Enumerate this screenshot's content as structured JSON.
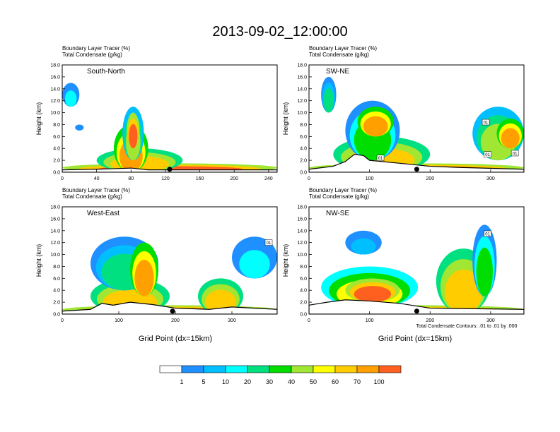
{
  "title": "2013-09-02_12:00:00",
  "panel_line1": "Boundary Layer Tracer   (%)",
  "panel_line2": "Total Condensate   (g/kg)",
  "ylabel": "Height (km)",
  "xlabel": "Grid Point (dx=15km)",
  "contour_note": "Total Condensate Contours: .01 to .01 by .000",
  "colors": {
    "levels": [
      "#ffffff",
      "#1e90ff",
      "#00bfff",
      "#00ffff",
      "#00e080",
      "#00dd00",
      "#a0e632",
      "#ffff00",
      "#ffcc00",
      "#ffa000",
      "#ff6020",
      "#ff2020"
    ],
    "contour": "#000000",
    "terrain": "#000000"
  },
  "colorbar": {
    "labels": [
      "1",
      "5",
      "10",
      "20",
      "30",
      "40",
      "50",
      "60",
      "70",
      "100"
    ]
  },
  "chart_data": [
    {
      "type": "heatmap",
      "name": "South-North",
      "label": "South-North",
      "ylim": [
        0,
        18
      ],
      "yticks": [
        "0.0",
        "2.0",
        "4.0",
        "6.0",
        "8.0",
        "10.0",
        "12.0",
        "14.0",
        "16.0",
        "18.0"
      ],
      "yvalues": [
        0,
        2,
        4,
        6,
        8,
        10,
        12,
        14,
        16,
        18
      ],
      "xlim": [
        0,
        250
      ],
      "xticks": [
        0,
        40,
        80,
        120,
        160,
        200,
        240
      ],
      "point_x": 125,
      "contour_labels": [],
      "terrain": [
        [
          0,
          0.4
        ],
        [
          40,
          0.5
        ],
        [
          60,
          0.6
        ],
        [
          80,
          0.7
        ],
        [
          100,
          0.4
        ],
        [
          250,
          0.4
        ]
      ],
      "blobs": [
        {
          "x": [
            0,
            250
          ],
          "y": [
            0,
            1.5
          ],
          "lv": 10
        },
        {
          "x": [
            40,
            140
          ],
          "y": [
            0,
            4
          ],
          "lv": 8
        },
        {
          "x": [
            60,
            100
          ],
          "y": [
            0,
            8
          ],
          "lv": 9
        },
        {
          "x": [
            70,
            95
          ],
          "y": [
            2,
            11
          ],
          "lv": 6
        },
        {
          "x": [
            75,
            90
          ],
          "y": [
            4,
            10
          ],
          "lv": 10
        },
        {
          "x": [
            0,
            20
          ],
          "y": [
            11,
            15
          ],
          "lv": 3
        },
        {
          "x": [
            15,
            25
          ],
          "y": [
            7,
            8
          ],
          "lv": 1
        }
      ]
    },
    {
      "type": "heatmap",
      "name": "SW-NE",
      "label": "SW-NE",
      "ylim": [
        0,
        18
      ],
      "yticks": [
        "0.0",
        "2.0",
        "4.0",
        "6.0",
        "8.0",
        "10.0",
        "12.0",
        "14.0",
        "16.0",
        "18.0"
      ],
      "yvalues": [
        0,
        2,
        4,
        6,
        8,
        10,
        12,
        14,
        16,
        18
      ],
      "xlim": [
        0,
        355
      ],
      "xticks": [
        0,
        100,
        200,
        300
      ],
      "point_x": 178,
      "contour_labels": [
        {
          "x": 118,
          "y": 2.4,
          "text": "01"
        },
        {
          "x": 292,
          "y": 8.4,
          "text": "01"
        },
        {
          "x": 295,
          "y": 3.0,
          "text": "01"
        },
        {
          "x": 340,
          "y": 3.2,
          "text": "01"
        }
      ],
      "terrain": [
        [
          0,
          0.5
        ],
        [
          40,
          1.0
        ],
        [
          60,
          1.8
        ],
        [
          75,
          3.0
        ],
        [
          90,
          2.8
        ],
        [
          100,
          2.0
        ],
        [
          150,
          1.5
        ],
        [
          200,
          1.0
        ],
        [
          250,
          0.8
        ],
        [
          355,
          0.5
        ]
      ],
      "blobs": [
        {
          "x": [
            0,
            355
          ],
          "y": [
            0,
            1.5
          ],
          "lv": 10
        },
        {
          "x": [
            40,
            200
          ],
          "y": [
            0,
            6
          ],
          "lv": 8
        },
        {
          "x": [
            60,
            150
          ],
          "y": [
            2,
            12
          ],
          "lv": 5
        },
        {
          "x": [
            80,
            140
          ],
          "y": [
            6,
            11
          ],
          "lv": 9
        },
        {
          "x": [
            20,
            45
          ],
          "y": [
            10,
            16
          ],
          "lv": 4
        },
        {
          "x": [
            270,
            355
          ],
          "y": [
            2,
            11
          ],
          "lv": 6
        },
        {
          "x": [
            310,
            355
          ],
          "y": [
            4,
            9
          ],
          "lv": 9
        }
      ]
    },
    {
      "type": "heatmap",
      "name": "West-East",
      "label": "West-East",
      "ylim": [
        0,
        18
      ],
      "yticks": [
        "0.0",
        "2.0",
        "4.0",
        "6.0",
        "8.0",
        "10.0",
        "12.0",
        "14.0",
        "16.0",
        "18.0"
      ],
      "yvalues": [
        0,
        2,
        4,
        6,
        8,
        10,
        12,
        14,
        16,
        18
      ],
      "xlim": [
        0,
        380
      ],
      "xticks": [
        0,
        100,
        200,
        300
      ],
      "point_x": 195,
      "contour_labels": [
        {
          "x": 365,
          "y": 12.0,
          "text": "01"
        }
      ],
      "terrain": [
        [
          0,
          0.5
        ],
        [
          50,
          0.8
        ],
        [
          70,
          1.8
        ],
        [
          90,
          1.5
        ],
        [
          120,
          2.0
        ],
        [
          160,
          1.6
        ],
        [
          200,
          1.0
        ],
        [
          260,
          0.8
        ],
        [
          300,
          1.2
        ],
        [
          380,
          0.8
        ]
      ],
      "blobs": [
        {
          "x": [
            0,
            380
          ],
          "y": [
            0,
            1.5
          ],
          "lv": 10
        },
        {
          "x": [
            50,
            190
          ],
          "y": [
            0,
            6
          ],
          "lv": 8
        },
        {
          "x": [
            50,
            170
          ],
          "y": [
            4,
            13
          ],
          "lv": 4
        },
        {
          "x": [
            120,
            170
          ],
          "y": [
            3,
            12
          ],
          "lv": 9
        },
        {
          "x": [
            240,
            320
          ],
          "y": [
            0,
            6
          ],
          "lv": 8
        },
        {
          "x": [
            300,
            380
          ],
          "y": [
            6,
            13
          ],
          "lv": 3
        }
      ]
    },
    {
      "type": "heatmap",
      "name": "NW-SE",
      "label": "NW-SE",
      "ylim": [
        0,
        18
      ],
      "yticks": [
        "0.0",
        "2.0",
        "4.0",
        "6.0",
        "8.0",
        "10.0",
        "12.0",
        "14.0",
        "16.0",
        "18.0"
      ],
      "yvalues": [
        0,
        2,
        4,
        6,
        8,
        10,
        12,
        14,
        16,
        18
      ],
      "xlim": [
        0,
        355
      ],
      "xticks": [
        0,
        100,
        200,
        300
      ],
      "point_x": 178,
      "contour_labels": [
        {
          "x": 295,
          "y": 13.5,
          "text": "01"
        }
      ],
      "terrain": [
        [
          0,
          1.5
        ],
        [
          30,
          2.0
        ],
        [
          60,
          2.4
        ],
        [
          100,
          2.2
        ],
        [
          150,
          1.8
        ],
        [
          200,
          1.0
        ],
        [
          355,
          0.8
        ]
      ],
      "blobs": [
        {
          "x": [
            0,
            355
          ],
          "y": [
            0,
            1.5
          ],
          "lv": 10
        },
        {
          "x": [
            20,
            180
          ],
          "y": [
            1,
            8
          ],
          "lv": 7
        },
        {
          "x": [
            60,
            150
          ],
          "y": [
            2,
            6
          ],
          "lv": 10
        },
        {
          "x": [
            60,
            120
          ],
          "y": [
            10,
            14
          ],
          "lv": 2
        },
        {
          "x": [
            210,
            300
          ],
          "y": [
            0,
            11
          ],
          "lv": 8
        },
        {
          "x": [
            270,
            310
          ],
          "y": [
            3,
            15
          ],
          "lv": 5
        }
      ]
    }
  ]
}
